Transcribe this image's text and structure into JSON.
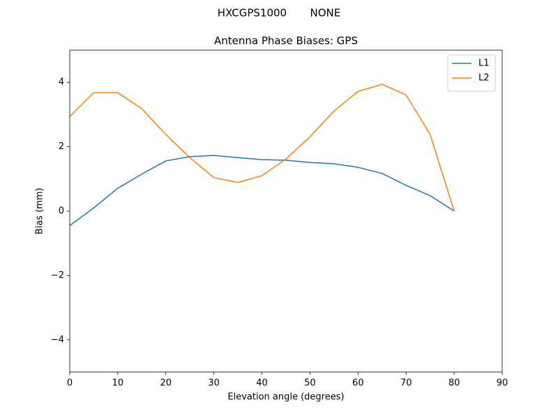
{
  "chart_data": {
    "type": "line",
    "suptitle": "HXCGPS1000       NONE",
    "title": "Antenna Phase Biases: GPS",
    "xlabel": "Elevation angle (degrees)",
    "ylabel": "Bias (mm)",
    "x": [
      0,
      5,
      10,
      15,
      20,
      25,
      30,
      35,
      40,
      45,
      50,
      55,
      60,
      65,
      70,
      75,
      80
    ],
    "series": [
      {
        "name": "L1",
        "color": "#1f77b4",
        "values": [
          -0.45,
          0.1,
          0.71,
          1.15,
          1.56,
          1.69,
          1.73,
          1.66,
          1.6,
          1.58,
          1.51,
          1.47,
          1.36,
          1.17,
          0.8,
          0.48,
          0
        ]
      },
      {
        "name": "L2",
        "color": "#ff7f0e",
        "values": [
          2.94,
          3.68,
          3.68,
          3.18,
          2.38,
          1.66,
          1.04,
          0.89,
          1.1,
          1.62,
          2.31,
          3.11,
          3.72,
          3.94,
          3.61,
          2.38,
          0
        ]
      }
    ],
    "xlim": [
      0,
      90
    ],
    "xticks": [
      0,
      10,
      20,
      30,
      40,
      50,
      60,
      70,
      80,
      90
    ],
    "ylim": [
      -5,
      5
    ],
    "yticks": [
      {
        "value": -4,
        "label": "−4"
      },
      {
        "value": -2,
        "label": "−2"
      },
      0,
      2,
      4
    ],
    "grid": false,
    "legend": "upper-right"
  }
}
